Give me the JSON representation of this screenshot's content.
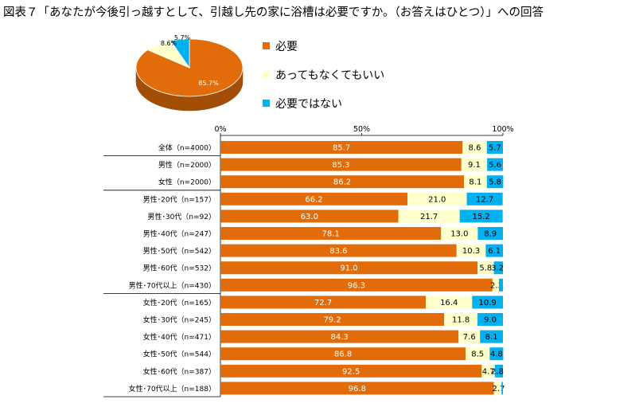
{
  "title": "図表７「あなたが今後引っ越すとして、引越し先の家に浴槽は必要ですか。（お答えはひとつ）」への回答",
  "colors": {
    "need": "#e36c0a",
    "either": "#ffffcc",
    "noneed": "#00b0f0"
  },
  "legend": [
    {
      "label": "必要",
      "color": "#e36c0a"
    },
    {
      "label": "あってもなくてもいい",
      "color": "#ffffcc"
    },
    {
      "label": "必要ではない",
      "color": "#00b0f0"
    }
  ],
  "chart_data": [
    {
      "type": "pie",
      "title": "",
      "slices": [
        {
          "name": "必要",
          "value": 85.7,
          "label": "85.7%"
        },
        {
          "name": "あってもなくてもいい",
          "value": 8.6,
          "label": "8.6%"
        },
        {
          "name": "必要ではない",
          "value": 5.7,
          "label": "5.7%"
        }
      ]
    },
    {
      "type": "bar",
      "orientation": "horizontal",
      "stacked": true,
      "xlim": [
        0,
        100
      ],
      "ticks": [
        "0%",
        "50%",
        "100%"
      ],
      "categories": [
        "全体（n=4000）",
        "男性（n=2000）",
        "女性（n=2000）",
        "男性･20代（n=157）",
        "男性･30代（n=92）",
        "男性･40代（n=247）",
        "男性･50代（n=542）",
        "男性･60代（n=532）",
        "男性･70代以上（n=430）",
        "女性･20代（n=165）",
        "女性･30代（n=245）",
        "女性･40代（n=471）",
        "女性･50代（n=544）",
        "女性･60代（n=387）",
        "女性･70代以上（n=188）"
      ],
      "group_breaks_after": [
        0,
        2,
        8
      ],
      "series": [
        {
          "name": "必要",
          "values": [
            85.7,
            85.3,
            86.2,
            66.2,
            63.0,
            78.1,
            83.6,
            91.0,
            96.3,
            72.7,
            79.2,
            84.3,
            86.8,
            92.5,
            96.8
          ],
          "labels": [
            "85.7",
            "85.3",
            "86.2",
            "66.2",
            "63.0",
            "78.1",
            "83.6",
            "91.0",
            "96.3",
            "72.7",
            "79.2",
            "84.3",
            "86.8",
            "92.5",
            "96.8"
          ]
        },
        {
          "name": "あってもなくてもいい",
          "values": [
            8.6,
            9.1,
            8.1,
            21.0,
            21.7,
            13.0,
            10.3,
            5.8,
            2.3,
            16.4,
            11.8,
            7.6,
            8.5,
            4.7,
            2.7
          ],
          "labels": [
            "8.6",
            "9.1",
            "8.1",
            "21.0",
            "21.7",
            "13.0",
            "10.3",
            "5.8",
            "2.3",
            "16.4",
            "11.8",
            "7.6",
            "8.5",
            "4.7",
            "2.7"
          ]
        },
        {
          "name": "必要ではない",
          "values": [
            5.7,
            5.6,
            5.8,
            12.7,
            15.2,
            8.9,
            6.1,
            3.2,
            1.4,
            10.9,
            9.0,
            8.1,
            4.8,
            2.8,
            0.5
          ],
          "labels": [
            "5.7",
            "5.6",
            "5.8",
            "12.7",
            "15.2",
            "8.9",
            "6.1",
            "3.2",
            "",
            "10.9",
            "9.0",
            "8.1",
            "4.8",
            "2.8",
            ""
          ]
        }
      ]
    }
  ]
}
